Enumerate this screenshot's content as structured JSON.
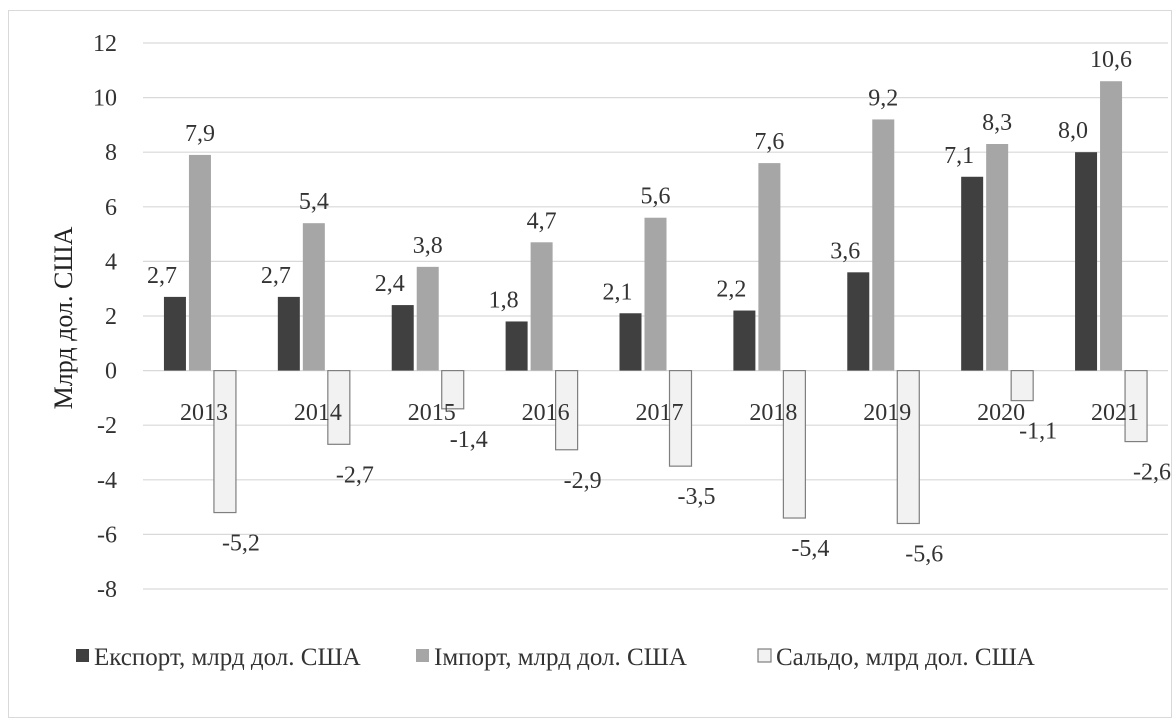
{
  "chart_data": {
    "type": "bar",
    "ylabel": "Млрд дол. США",
    "ylim": [
      -8,
      12
    ],
    "yticks": [
      12,
      10,
      8,
      6,
      4,
      2,
      0,
      -2,
      -4,
      -6,
      -8
    ],
    "grid": true,
    "legend_position": "bottom",
    "categories": [
      "2013",
      "2014",
      "2015",
      "2016",
      "2017",
      "2018",
      "2019",
      "2020",
      "2021"
    ],
    "series": [
      {
        "name": "Експорт, млрд дол. США",
        "color": "#404040",
        "values": [
          2.7,
          2.7,
          2.4,
          1.8,
          2.1,
          2.2,
          3.6,
          7.1,
          8.0
        ],
        "labels": [
          "2,7",
          "2,7",
          "2,4",
          "1,8",
          "2,1",
          "2,2",
          "3,6",
          "7,1",
          "8,0"
        ]
      },
      {
        "name": "Імпорт, млрд дол. США",
        "color": "#a6a6a6",
        "values": [
          7.9,
          5.4,
          3.8,
          4.7,
          5.6,
          7.6,
          9.2,
          8.3,
          10.6
        ],
        "labels": [
          "7,9",
          "5,4",
          "3,8",
          "4,7",
          "5,6",
          "7,6",
          "9,2",
          "8,3",
          "10,6"
        ]
      },
      {
        "name": "Сальдо, млрд дол. США",
        "color": "#f2f2f2",
        "values": [
          -5.2,
          -2.7,
          -1.4,
          -2.9,
          -3.5,
          -5.4,
          -5.6,
          -1.1,
          -2.6
        ],
        "labels": [
          "-5,2",
          "-2,7",
          "-1,4",
          "-2,9",
          "-3,5",
          "-5,4",
          "-5,6",
          "-1,1",
          "-2,6"
        ]
      }
    ]
  }
}
